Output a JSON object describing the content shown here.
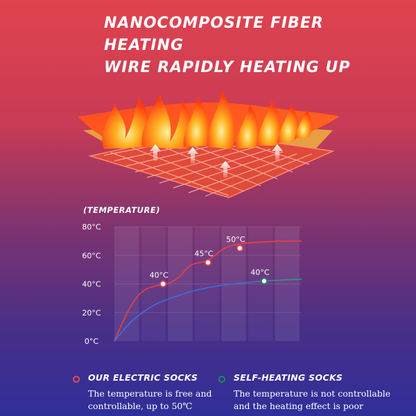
{
  "headline": {
    "line1": "Nanocomposite fiber heating",
    "line2": "wire rapidly heating up"
  },
  "legend": [
    {
      "name": "Our electric socks",
      "description": "The temperature is free and controllable, up to 50℃",
      "color": "#e84a55"
    },
    {
      "name": "Self-heating socks",
      "description": "The temperature is not controllable and the heating effect is poor",
      "color": "#1f8a60"
    }
  ],
  "chart_data": {
    "type": "line",
    "ylabel": "(Temperature)",
    "ylim": [
      0,
      80
    ],
    "yticks": [
      {
        "value": 0,
        "label": "0°C"
      },
      {
        "value": 20,
        "label": "20°C"
      },
      {
        "value": 40,
        "label": "40°C"
      },
      {
        "value": 60,
        "label": "60°C"
      },
      {
        "value": 80,
        "label": "80°C"
      }
    ],
    "xlim": [
      0,
      1
    ],
    "grid": true,
    "series": [
      {
        "name": "Our electric socks",
        "color": "#ea3d45",
        "points": [
          [
            0,
            0
          ],
          [
            0.04,
            12
          ],
          [
            0.08,
            23
          ],
          [
            0.12,
            31
          ],
          [
            0.16,
            36
          ],
          [
            0.2,
            38
          ],
          [
            0.25,
            39.5
          ],
          [
            0.28,
            39.8
          ],
          [
            0.31,
            41.5
          ],
          [
            0.35,
            45
          ],
          [
            0.4,
            53
          ],
          [
            0.45,
            55
          ],
          [
            0.48,
            55.3
          ],
          [
            0.51,
            57
          ],
          [
            0.55,
            61.5
          ],
          [
            0.6,
            66
          ],
          [
            0.66,
            68
          ],
          [
            0.74,
            69
          ],
          [
            0.82,
            69.5
          ],
          [
            0.9,
            70
          ],
          [
            1,
            70
          ]
        ],
        "annotations": [
          {
            "x": 0.26,
            "y": 40,
            "label": "40°C"
          },
          {
            "x": 0.5,
            "y": 55,
            "label": "45°C"
          },
          {
            "x": 0.67,
            "y": 65,
            "label": "50°C"
          }
        ]
      },
      {
        "name": "Self-heating socks",
        "color": "#3a6fe0",
        "points": [
          [
            0,
            0
          ],
          [
            0.05,
            8
          ],
          [
            0.1,
            15
          ],
          [
            0.16,
            21
          ],
          [
            0.22,
            26
          ],
          [
            0.3,
            30
          ],
          [
            0.4,
            34.5
          ],
          [
            0.5,
            37.5
          ],
          [
            0.6,
            39.5
          ],
          [
            0.7,
            41
          ],
          [
            0.8,
            42
          ],
          [
            0.9,
            42.8
          ],
          [
            1,
            43.3
          ]
        ],
        "annotations": [
          {
            "x": 0.8,
            "y": 42,
            "label": "40°C"
          }
        ]
      }
    ]
  }
}
